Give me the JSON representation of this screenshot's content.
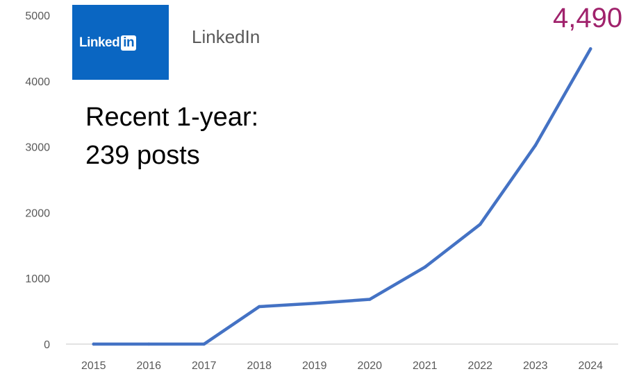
{
  "brand": {
    "logo_text": "Linked",
    "logo_in": "in",
    "name": "LinkedIn",
    "logo_color": "#0a66c2"
  },
  "annotation": {
    "line1": "Recent 1-year:",
    "line2": "239 posts"
  },
  "last_value_label": "4,490",
  "colors": {
    "line": "#4472c4",
    "highlight": "#a0226c",
    "axis_text": "#595959"
  },
  "chart_data": {
    "type": "line",
    "title": "",
    "xlabel": "",
    "ylabel": "",
    "categories": [
      "2015",
      "2016",
      "2017",
      "2018",
      "2019",
      "2020",
      "2021",
      "2022",
      "2023",
      "2024"
    ],
    "y_ticks": [
      "0",
      "1000",
      "2000",
      "3000",
      "4000",
      "5000"
    ],
    "ylim": [
      0,
      5000
    ],
    "grid": false,
    "legend": "none",
    "series": [
      {
        "values": [
          0,
          0,
          0,
          570,
          620,
          680,
          1170,
          1820,
          3020,
          4490
        ]
      }
    ]
  }
}
